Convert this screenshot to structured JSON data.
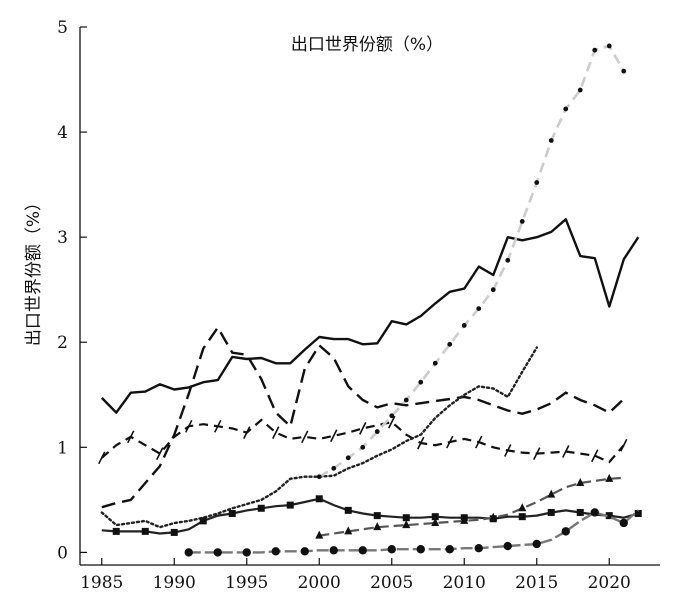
{
  "chart_data": {
    "type": "line",
    "title": "出口世界份额（%）",
    "ylabel": "出口世界份额（%）",
    "xlabel": "",
    "xlim": [
      1983.5,
      2023.5
    ],
    "ylim": [
      -0.12,
      5.0
    ],
    "xticks": [
      1985,
      1990,
      1995,
      2000,
      2005,
      2010,
      2015,
      2020
    ],
    "yticks": [
      0,
      1,
      2,
      3,
      4,
      5
    ],
    "series": [
      {
        "style": "solid",
        "color": "#111111",
        "x": [
          1985,
          1986,
          1987,
          1988,
          1989,
          1990,
          1991,
          1992,
          1993,
          1994,
          1995,
          1996,
          1997,
          1998,
          1999,
          2000,
          2001,
          2002,
          2003,
          2004,
          2005,
          2006,
          2007,
          2008,
          2009,
          2010,
          2011,
          2012,
          2013,
          2014,
          2015,
          2016,
          2017,
          2018,
          2019,
          2020,
          2021,
          2022
        ],
        "y": [
          1.47,
          1.33,
          1.52,
          1.53,
          1.6,
          1.55,
          1.57,
          1.62,
          1.64,
          1.86,
          1.84,
          1.85,
          1.8,
          1.8,
          1.93,
          2.05,
          2.03,
          2.03,
          1.98,
          1.99,
          2.2,
          2.17,
          2.25,
          2.37,
          2.48,
          2.51,
          2.72,
          2.64,
          3.0,
          2.97,
          3.0,
          3.05,
          3.17,
          2.82,
          2.8,
          2.34,
          2.79,
          3.0
        ]
      },
      {
        "style": "longdash",
        "color": "#111111",
        "x": [
          1985,
          1986,
          1987,
          1988,
          1989,
          1990,
          1991,
          1992,
          1993,
          1994,
          1995,
          1996,
          1997,
          1998,
          1999,
          2000,
          2001,
          2002,
          2003,
          2004,
          2005,
          2006,
          2007,
          2008,
          2009,
          2010,
          2011,
          2012,
          2013,
          2014,
          2015,
          2016,
          2017,
          2018,
          2019,
          2020,
          2021
        ],
        "y": [
          0.43,
          0.47,
          0.5,
          0.66,
          0.82,
          1.12,
          1.51,
          1.94,
          2.14,
          1.9,
          1.88,
          1.65,
          1.33,
          1.2,
          1.75,
          1.97,
          1.85,
          1.58,
          1.45,
          1.38,
          1.42,
          1.4,
          1.42,
          1.44,
          1.46,
          1.48,
          1.45,
          1.4,
          1.35,
          1.32,
          1.36,
          1.42,
          1.52,
          1.45,
          1.4,
          1.33,
          1.46
        ]
      },
      {
        "style": "hatchdash",
        "color": "#111111",
        "x": [
          1985,
          1986,
          1987,
          1988,
          1989,
          1990,
          1991,
          1992,
          1993,
          1994,
          1995,
          1996,
          1997,
          1998,
          1999,
          2000,
          2001,
          2002,
          2003,
          2004,
          2005,
          2006,
          2007,
          2008,
          2009,
          2010,
          2011,
          2012,
          2013,
          2014,
          2015,
          2016,
          2017,
          2018,
          2019,
          2020,
          2021
        ],
        "y": [
          0.9,
          1.02,
          1.1,
          1.02,
          0.94,
          1.1,
          1.2,
          1.22,
          1.2,
          1.18,
          1.14,
          1.26,
          1.14,
          1.08,
          1.1,
          1.08,
          1.11,
          1.14,
          1.18,
          1.21,
          1.24,
          1.12,
          1.04,
          1.02,
          1.05,
          1.08,
          1.05,
          1.0,
          0.97,
          0.95,
          0.94,
          0.95,
          0.96,
          0.94,
          0.92,
          0.86,
          1.02
        ]
      },
      {
        "style": "dotted",
        "color": "#222222",
        "x": [
          1985,
          1986,
          1987,
          1988,
          1989,
          1990,
          1991,
          1992,
          1993,
          1994,
          1995,
          1996,
          1997,
          1998,
          1999,
          2000,
          2001,
          2002,
          2003,
          2004,
          2005,
          2006,
          2007,
          2008,
          2009,
          2010,
          2011,
          2012,
          2013,
          2014,
          2015
        ],
        "y": [
          0.38,
          0.26,
          0.28,
          0.3,
          0.24,
          0.28,
          0.3,
          0.33,
          0.37,
          0.42,
          0.46,
          0.5,
          0.58,
          0.7,
          0.72,
          0.72,
          0.73,
          0.8,
          0.85,
          0.92,
          0.98,
          1.06,
          1.12,
          1.28,
          1.4,
          1.5,
          1.58,
          1.56,
          1.48,
          1.72,
          1.95
        ]
      },
      {
        "style": "bigdots",
        "color": "#111111",
        "dash_color": "#cccccc",
        "x": [
          2000,
          2001,
          2002,
          2003,
          2004,
          2005,
          2006,
          2007,
          2008,
          2009,
          2010,
          2011,
          2012,
          2013,
          2014,
          2015,
          2016,
          2017,
          2018,
          2019,
          2020,
          2021
        ],
        "y": [
          0.72,
          0.8,
          0.9,
          1.0,
          1.15,
          1.3,
          1.45,
          1.62,
          1.8,
          1.98,
          2.16,
          2.32,
          2.5,
          2.78,
          3.15,
          3.52,
          3.92,
          4.22,
          4.4,
          4.78,
          4.82,
          4.58
        ]
      },
      {
        "style": "squares",
        "color": "#222222",
        "marker": "square",
        "x": [
          1985,
          1986,
          1987,
          1988,
          1989,
          1990,
          1991,
          1992,
          1993,
          1994,
          1995,
          1996,
          1997,
          1998,
          1999,
          2000,
          2001,
          2002,
          2003,
          2004,
          2005,
          2006,
          2007,
          2008,
          2009,
          2010,
          2011,
          2012,
          2013,
          2014,
          2015,
          2016,
          2017,
          2018,
          2019,
          2020,
          2021,
          2022
        ],
        "y": [
          0.21,
          0.2,
          0.2,
          0.2,
          0.18,
          0.19,
          0.22,
          0.3,
          0.35,
          0.37,
          0.4,
          0.42,
          0.44,
          0.45,
          0.48,
          0.51,
          0.45,
          0.4,
          0.37,
          0.35,
          0.34,
          0.33,
          0.33,
          0.34,
          0.33,
          0.33,
          0.33,
          0.32,
          0.34,
          0.34,
          0.35,
          0.38,
          0.4,
          0.38,
          0.36,
          0.35,
          0.33,
          0.37
        ]
      },
      {
        "style": "triangles",
        "color": "#555555",
        "marker": "triangle",
        "x": [
          2000,
          2001,
          2002,
          2003,
          2004,
          2005,
          2006,
          2007,
          2008,
          2009,
          2010,
          2011,
          2012,
          2013,
          2014,
          2015,
          2016,
          2017,
          2018,
          2019,
          2020,
          2021
        ],
        "y": [
          0.16,
          0.18,
          0.2,
          0.22,
          0.24,
          0.25,
          0.26,
          0.27,
          0.28,
          0.29,
          0.3,
          0.31,
          0.33,
          0.36,
          0.42,
          0.48,
          0.55,
          0.62,
          0.66,
          0.68,
          0.7,
          0.71
        ]
      },
      {
        "style": "circles",
        "color": "#777777",
        "marker": "circle",
        "x": [
          1991,
          1992,
          1993,
          1994,
          1995,
          1996,
          1997,
          1998,
          1999,
          2000,
          2001,
          2002,
          2003,
          2004,
          2005,
          2006,
          2007,
          2008,
          2009,
          2010,
          2011,
          2012,
          2013,
          2014,
          2015,
          2016,
          2017,
          2018,
          2019,
          2020,
          2021,
          2022
        ],
        "y": [
          0.0,
          0.0,
          0.0,
          0.0,
          0.0,
          0.0,
          0.01,
          0.01,
          0.01,
          0.02,
          0.02,
          0.02,
          0.02,
          0.02,
          0.03,
          0.03,
          0.03,
          0.03,
          0.03,
          0.04,
          0.04,
          0.05,
          0.06,
          0.07,
          0.08,
          0.12,
          0.2,
          0.3,
          0.38,
          0.34,
          0.28,
          0.4
        ]
      }
    ]
  }
}
